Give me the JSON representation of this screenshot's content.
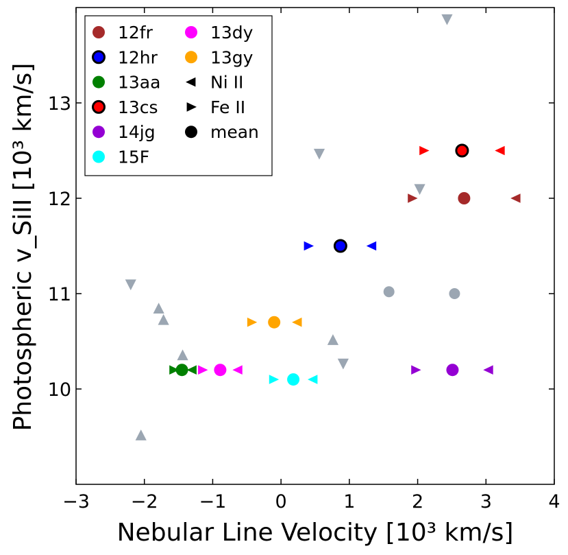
{
  "chart_data": {
    "type": "scatter",
    "xlabel": "Nebular Line Velocity [10³ km/s]",
    "ylabel": "Photospheric v_SiII [10³ km/s]",
    "xlim": [
      -3,
      4
    ],
    "ylim": [
      9.0,
      14.0
    ],
    "xticks": [
      "−3",
      "−2",
      "−1",
      "0",
      "1",
      "2",
      "3",
      "4"
    ],
    "yticks": [
      "10",
      "11",
      "12",
      "13"
    ],
    "legend": {
      "position": "top-left",
      "entries": [
        {
          "label": "12fr",
          "marker": "circle",
          "color": "#a52a2a"
        },
        {
          "label": "12hr",
          "marker": "circle-outlined",
          "color": "#0000ff"
        },
        {
          "label": "13aa",
          "marker": "circle",
          "color": "#008000"
        },
        {
          "label": "13cs",
          "marker": "circle-outlined",
          "color": "#ff0000"
        },
        {
          "label": "14jg",
          "marker": "circle",
          "color": "#9400d3"
        },
        {
          "label": "15F",
          "marker": "circle",
          "color": "#00ffff"
        },
        {
          "label": "13dy",
          "marker": "circle",
          "color": "#ff00ff"
        },
        {
          "label": "13gy",
          "marker": "circle",
          "color": "#ffa500"
        },
        {
          "label": "Ni II",
          "marker": "tri-left",
          "color": "#000000"
        },
        {
          "label": "Fe II",
          "marker": "tri-right",
          "color": "#000000"
        },
        {
          "label": "mean",
          "marker": "circle",
          "color": "#000000"
        }
      ]
    },
    "series": [
      {
        "name": "12fr",
        "color": "#a52a2a",
        "outlined": false,
        "y": 12.0,
        "fe": 1.92,
        "mean": 2.68,
        "ni": 3.44
      },
      {
        "name": "12hr",
        "color": "#0000ff",
        "outlined": true,
        "y": 11.5,
        "fe": 0.4,
        "mean": 0.87,
        "ni": 1.33
      },
      {
        "name": "13aa",
        "color": "#008000",
        "outlined": false,
        "y": 10.2,
        "fe": -1.57,
        "mean": -1.45,
        "ni": -1.3
      },
      {
        "name": "13cs",
        "color": "#ff0000",
        "outlined": true,
        "y": 12.5,
        "fe": 2.09,
        "mean": 2.65,
        "ni": 3.21
      },
      {
        "name": "14jg",
        "color": "#9400d3",
        "outlined": false,
        "y": 10.2,
        "fe": 1.97,
        "mean": 2.51,
        "ni": 3.04
      },
      {
        "name": "15F",
        "color": "#00ffff",
        "outlined": false,
        "y": 10.1,
        "fe": -0.11,
        "mean": 0.18,
        "ni": 0.47
      },
      {
        "name": "13dy",
        "color": "#ff00ff",
        "outlined": false,
        "y": 10.2,
        "fe": -1.15,
        "mean": -0.89,
        "ni": -0.63
      },
      {
        "name": "13gy",
        "color": "#ffa500",
        "outlined": false,
        "y": 10.7,
        "fe": -0.43,
        "mean": -0.1,
        "ni": 0.24
      }
    ],
    "gray_points": {
      "color": "#9ba6b2",
      "circles": [
        [
          1.58,
          11.02
        ],
        [
          2.54,
          11.0
        ]
      ],
      "triangles_up": [
        [
          -1.79,
          10.84
        ],
        [
          -1.72,
          10.72
        ],
        [
          -1.44,
          10.35
        ],
        [
          0.76,
          10.51
        ],
        [
          -2.05,
          9.51
        ]
      ],
      "triangles_down": [
        [
          -2.2,
          11.1
        ],
        [
          0.56,
          12.47
        ],
        [
          2.03,
          12.1
        ],
        [
          0.91,
          10.27
        ],
        [
          2.43,
          13.88
        ]
      ]
    }
  }
}
